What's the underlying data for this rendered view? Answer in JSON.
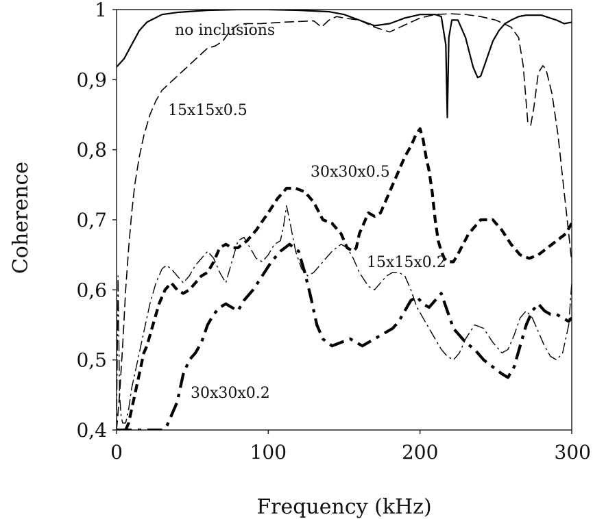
{
  "chart_data": {
    "type": "line",
    "xlabel": "Frequency (kHz)",
    "ylabel": "Coherence",
    "xlim": [
      0,
      300
    ],
    "ylim": [
      0.4,
      1.0
    ],
    "x_ticks": [
      0,
      100,
      200,
      300
    ],
    "x_tick_labels": [
      "0",
      "100",
      "200",
      "300"
    ],
    "y_ticks": [
      0.4,
      0.5,
      0.6,
      0.7,
      0.8,
      0.9,
      1.0
    ],
    "y_tick_labels": [
      "0,4",
      "0,5",
      "0,6",
      "0,7",
      "0,8",
      "0,9",
      "1"
    ],
    "grid": false,
    "legend": "none",
    "series": [
      {
        "name": "no inclusions",
        "style": "solid",
        "x": [
          0,
          5,
          10,
          15,
          20,
          30,
          40,
          60,
          80,
          100,
          120,
          140,
          150,
          160,
          170,
          180,
          190,
          200,
          210,
          214,
          217,
          218,
          219,
          221,
          225,
          230,
          235,
          238,
          240,
          244,
          248,
          252,
          256,
          260,
          265,
          270,
          280,
          290,
          295,
          300
        ],
        "y": [
          0.918,
          0.93,
          0.95,
          0.97,
          0.982,
          0.993,
          0.996,
          0.999,
          1.0,
          1.0,
          0.999,
          0.997,
          0.993,
          0.985,
          0.977,
          0.98,
          0.988,
          0.993,
          0.993,
          0.99,
          0.95,
          0.846,
          0.96,
          0.985,
          0.985,
          0.96,
          0.918,
          0.903,
          0.905,
          0.93,
          0.955,
          0.97,
          0.98,
          0.985,
          0.99,
          0.992,
          0.992,
          0.985,
          0.98,
          0.982
        ]
      },
      {
        "name": "15x15x0.5",
        "style": "dashed",
        "x": [
          0,
          2,
          4,
          6,
          8,
          10,
          12,
          15,
          18,
          22,
          26,
          30,
          35,
          40,
          45,
          50,
          55,
          60,
          65,
          70,
          75,
          80,
          85,
          95,
          110,
          120,
          130,
          135,
          140,
          145,
          150,
          160,
          170,
          180,
          190,
          200,
          210,
          220,
          230,
          240,
          250,
          260,
          265,
          268,
          271,
          273,
          275,
          278,
          281,
          283,
          287,
          291,
          295,
          298,
          300
        ],
        "y": [
          0.4,
          0.45,
          0.52,
          0.6,
          0.66,
          0.71,
          0.75,
          0.79,
          0.82,
          0.85,
          0.87,
          0.885,
          0.895,
          0.905,
          0.915,
          0.925,
          0.935,
          0.945,
          0.948,
          0.955,
          0.97,
          0.978,
          0.98,
          0.98,
          0.982,
          0.983,
          0.984,
          0.975,
          0.985,
          0.99,
          0.988,
          0.985,
          0.975,
          0.968,
          0.978,
          0.988,
          0.993,
          0.994,
          0.993,
          0.99,
          0.985,
          0.975,
          0.96,
          0.92,
          0.84,
          0.835,
          0.86,
          0.91,
          0.92,
          0.915,
          0.88,
          0.82,
          0.74,
          0.68,
          0.64
        ]
      },
      {
        "name": "30x30x0.5",
        "style": "dashed-bold",
        "x": [
          6,
          8,
          10,
          12,
          14,
          16,
          18,
          20,
          24,
          28,
          32,
          36,
          40,
          44,
          48,
          52,
          56,
          60,
          64,
          68,
          72,
          76,
          80,
          86,
          92,
          100,
          106,
          112,
          118,
          124,
          130,
          136,
          142,
          148,
          152,
          156,
          158,
          160,
          162,
          164,
          166,
          170,
          174,
          178,
          182,
          186,
          190,
          194,
          197,
          200,
          202,
          204,
          206,
          208,
          210,
          212,
          214,
          216,
          218,
          222,
          226,
          232,
          240,
          248,
          254,
          260,
          266,
          272,
          278,
          284,
          290,
          296,
          300
        ],
        "y": [
          0.4,
          0.41,
          0.43,
          0.45,
          0.47,
          0.49,
          0.51,
          0.52,
          0.55,
          0.58,
          0.6,
          0.61,
          0.6,
          0.595,
          0.6,
          0.61,
          0.62,
          0.625,
          0.64,
          0.66,
          0.665,
          0.66,
          0.66,
          0.67,
          0.685,
          0.71,
          0.73,
          0.745,
          0.745,
          0.74,
          0.725,
          0.7,
          0.695,
          0.68,
          0.66,
          0.655,
          0.66,
          0.68,
          0.69,
          0.7,
          0.71,
          0.705,
          0.71,
          0.73,
          0.75,
          0.77,
          0.79,
          0.805,
          0.82,
          0.83,
          0.815,
          0.79,
          0.77,
          0.74,
          0.7,
          0.67,
          0.655,
          0.645,
          0.64,
          0.64,
          0.655,
          0.68,
          0.7,
          0.7,
          0.685,
          0.665,
          0.65,
          0.645,
          0.65,
          0.66,
          0.67,
          0.68,
          0.695
        ]
      },
      {
        "name": "15x15x0.2",
        "style": "dash-dot",
        "x": [
          0,
          1,
          2,
          3,
          4,
          6,
          8,
          10,
          14,
          18,
          22,
          26,
          30,
          33,
          36,
          40,
          44,
          48,
          52,
          56,
          60,
          64,
          68,
          72,
          76,
          80,
          84,
          88,
          92,
          96,
          100,
          104,
          108,
          110,
          112,
          114,
          118,
          122,
          126,
          130,
          136,
          142,
          148,
          152,
          156,
          160,
          166,
          170,
          174,
          178,
          182,
          186,
          190,
          194,
          198,
          202,
          206,
          210,
          214,
          218,
          222,
          226,
          230,
          236,
          242,
          248,
          254,
          258,
          262,
          266,
          270,
          274,
          278,
          282,
          286,
          290,
          294,
          298,
          300
        ],
        "y": [
          0.4,
          0.62,
          0.45,
          0.42,
          0.41,
          0.41,
          0.43,
          0.46,
          0.5,
          0.54,
          0.58,
          0.61,
          0.63,
          0.635,
          0.63,
          0.62,
          0.61,
          0.62,
          0.635,
          0.645,
          0.655,
          0.645,
          0.625,
          0.61,
          0.64,
          0.67,
          0.675,
          0.66,
          0.645,
          0.64,
          0.65,
          0.665,
          0.67,
          0.69,
          0.72,
          0.7,
          0.655,
          0.63,
          0.62,
          0.625,
          0.64,
          0.655,
          0.665,
          0.66,
          0.645,
          0.625,
          0.605,
          0.6,
          0.61,
          0.62,
          0.625,
          0.625,
          0.62,
          0.6,
          0.575,
          0.56,
          0.545,
          0.53,
          0.515,
          0.505,
          0.5,
          0.51,
          0.53,
          0.55,
          0.545,
          0.525,
          0.51,
          0.515,
          0.535,
          0.56,
          0.57,
          0.56,
          0.54,
          0.52,
          0.505,
          0.5,
          0.51,
          0.55,
          0.61
        ]
      },
      {
        "name": "30x30x0.2",
        "style": "dash-dot-bold",
        "x": [
          0,
          10,
          20,
          25,
          30,
          33,
          36,
          40,
          44,
          48,
          52,
          56,
          60,
          64,
          68,
          72,
          76,
          80,
          84,
          90,
          96,
          102,
          108,
          114,
          120,
          124,
          128,
          132,
          136,
          142,
          148,
          154,
          158,
          162,
          166,
          170,
          174,
          178,
          182,
          186,
          190,
          194,
          198,
          202,
          206,
          210,
          214,
          218,
          222,
          226,
          230,
          236,
          242,
          248,
          254,
          258,
          262,
          266,
          270,
          274,
          278,
          282,
          286,
          290,
          294,
          298,
          300
        ],
        "y": [
          0.4,
          0.4,
          0.4,
          0.4,
          0.4,
          0.405,
          0.42,
          0.44,
          0.48,
          0.5,
          0.51,
          0.525,
          0.55,
          0.565,
          0.575,
          0.58,
          0.575,
          0.57,
          0.585,
          0.6,
          0.62,
          0.64,
          0.655,
          0.665,
          0.655,
          0.625,
          0.59,
          0.55,
          0.53,
          0.52,
          0.525,
          0.53,
          0.525,
          0.52,
          0.525,
          0.53,
          0.535,
          0.54,
          0.545,
          0.555,
          0.57,
          0.585,
          0.59,
          0.58,
          0.575,
          0.585,
          0.595,
          0.57,
          0.545,
          0.535,
          0.525,
          0.515,
          0.5,
          0.49,
          0.48,
          0.475,
          0.49,
          0.52,
          0.55,
          0.57,
          0.58,
          0.57,
          0.565,
          0.565,
          0.56,
          0.555,
          0.56
        ]
      }
    ]
  }
}
